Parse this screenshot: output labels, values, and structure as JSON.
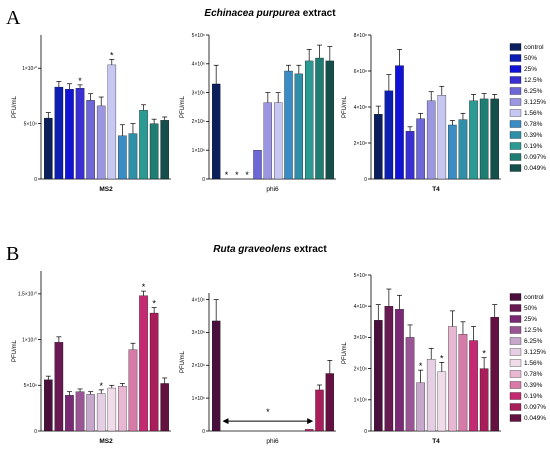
{
  "panels": [
    {
      "letter": "A",
      "title_italic": "Echinacea purpurea",
      "title_rest": " extract"
    },
    {
      "letter": "B",
      "title_italic": "Ruta graveolens",
      "title_rest": " extract"
    }
  ],
  "legend_labels": [
    "control",
    "50%",
    "25%",
    "12.5%",
    "6.25%",
    "3.125%",
    "1.56%",
    "0.78%",
    "0.39%",
    "0.19%",
    "0.097%",
    "0.049%"
  ],
  "palettes": {
    "A": [
      "#0a1f5c",
      "#0d1fb3",
      "#1212d6",
      "#3a2fd1",
      "#6e67d8",
      "#9b96e2",
      "#c6c8f2",
      "#3a8cc5",
      "#2e8fa8",
      "#2b9a93",
      "#1f7d74",
      "#154f4b"
    ],
    "B": [
      "#4a0f3c",
      "#6a1a52",
      "#7a2a75",
      "#9a5595",
      "#c8a7cd",
      "#e6cfe5",
      "#f0dbe8",
      "#e8b7d2",
      "#d87aa8",
      "#c42a72",
      "#a81e5a",
      "#641040"
    ]
  },
  "chart_data": [
    {
      "id": "A-MS2",
      "type": "bar",
      "panel": "A",
      "categories": [
        "control",
        "50%",
        "25%",
        "12.5%",
        "6.25%",
        "3.125%",
        "1.56%",
        "0.78%",
        "0.39%",
        "0.19%",
        "0.097%",
        "0.049%"
      ],
      "values": [
        5500000000.0,
        8300000000.0,
        8100000000.0,
        8200000000.0,
        7100000000.0,
        6600000000.0,
        10300000000.0,
        3900000000.0,
        4100000000.0,
        6200000000.0,
        5000000000.0,
        5300000000.0
      ],
      "errors": [
        500000000.0,
        500000000.0,
        500000000.0,
        300000000.0,
        600000000.0,
        800000000.0,
        500000000.0,
        1000000000.0,
        900000000.0,
        500000000.0,
        400000000.0,
        300000000.0
      ],
      "stars": [
        3,
        6
      ],
      "xlabel": "MS2",
      "ylabel": "PFU/mL",
      "ylim": [
        0,
        13000000000.0
      ],
      "ticks": [
        0,
        5000000000.0,
        10000000000.0
      ],
      "tick_labels": [
        "0",
        "5×10⁹",
        "1×10¹⁰"
      ]
    },
    {
      "id": "A-phi6",
      "type": "bar",
      "panel": "A",
      "categories": [
        "control",
        "50%",
        "25%",
        "12.5%",
        "6.25%",
        "3.125%",
        "1.56%",
        "0.78%",
        "0.39%",
        "0.19%",
        "0.097%",
        "0.049%"
      ],
      "values": [
        3300000.0,
        0,
        0,
        0,
        1000000.0,
        2650000.0,
        2650000.0,
        3750000.0,
        3650000.0,
        4100000.0,
        4200000.0,
        4100000.0
      ],
      "errors": [
        650000.0,
        0,
        0,
        0,
        0,
        350000.0,
        350000.0,
        200000.0,
        300000.0,
        400000.0,
        450000.0,
        500000.0
      ],
      "stars": [
        1,
        2,
        3
      ],
      "xlabel": "phi6",
      "ylabel": "PFU/mL",
      "ylim": [
        0,
        5000000.0
      ],
      "ticks": [
        0,
        1000000.0,
        2000000.0,
        3000000.0,
        4000000.0,
        5000000.0
      ],
      "tick_labels": [
        "0",
        "1×10⁶",
        "2×10⁶",
        "3×10⁶",
        "4×10⁶",
        "5×10⁶"
      ]
    },
    {
      "id": "A-T4",
      "type": "bar",
      "panel": "A",
      "categories": [
        "control",
        "50%",
        "25%",
        "12.5%",
        "6.25%",
        "3.125%",
        "1.56%",
        "0.78%",
        "0.39%",
        "0.19%",
        "0.097%",
        "0.049%"
      ],
      "values": [
        360000000.0,
        490000000.0,
        630000000.0,
        265000000.0,
        335000000.0,
        435000000.0,
        465000000.0,
        300000000.0,
        330000000.0,
        435000000.0,
        445000000.0,
        445000000.0
      ],
      "errors": [
        45000000.0,
        90000000.0,
        90000000.0,
        25000000.0,
        30000000.0,
        50000000.0,
        50000000.0,
        25000000.0,
        35000000.0,
        35000000.0,
        30000000.0,
        25000000.0
      ],
      "stars": [],
      "xlabel": "T4",
      "ylabel": "PFU/mL",
      "ylim": [
        0,
        800000000.0
      ],
      "ticks": [
        0,
        200000000.0,
        400000000.0,
        600000000.0,
        800000000.0
      ],
      "tick_labels": [
        "0",
        "2×10⁸",
        "4×10⁸",
        "6×10⁸",
        "8×10⁸"
      ]
    },
    {
      "id": "B-MS2",
      "type": "bar",
      "panel": "B",
      "categories": [
        "control",
        "50%",
        "25%",
        "12.5%",
        "6.25%",
        "3.125%",
        "1.56%",
        "0.78%",
        "0.39%",
        "0.19%",
        "0.097%",
        "0.049%"
      ],
      "values": [
        5600000000.0,
        9700000000.0,
        3900000000.0,
        4300000000.0,
        4000000000.0,
        4100000000.0,
        4700000000.0,
        4900000000.0,
        8900000000.0,
        14800000000.0,
        12900000000.0,
        5200000000.0
      ],
      "errors": [
        400000000.0,
        600000000.0,
        400000000.0,
        300000000.0,
        300000000.0,
        400000000.0,
        300000000.0,
        300000000.0,
        700000000.0,
        500000000.0,
        600000000.0,
        600000000.0
      ],
      "stars": [
        5,
        9,
        10
      ],
      "xlabel": "MS2",
      "ylabel": "PFU/mL",
      "ylim": [
        0,
        17500000000.0
      ],
      "ticks": [
        0,
        5000000000.0,
        10000000000.0,
        15000000000.0
      ],
      "tick_labels": [
        "0",
        "5×10⁹",
        "1×10¹⁰",
        "1.5×10¹⁰"
      ]
    },
    {
      "id": "B-phi6",
      "type": "bar",
      "panel": "B",
      "categories": [
        "control",
        "50%",
        "25%",
        "12.5%",
        "6.25%",
        "3.125%",
        "1.56%",
        "0.78%",
        "0.39%",
        "0.19%",
        "0.097%",
        "0.049%"
      ],
      "values": [
        3350000.0,
        0,
        0,
        0,
        0,
        0,
        0,
        0,
        0,
        50000.0,
        1250000.0,
        1750000.0
      ],
      "errors": [
        650000.0,
        0,
        0,
        0,
        0,
        0,
        0,
        0,
        0,
        0,
        150000.0,
        400000.0
      ],
      "stars": [],
      "bracket": {
        "from": 1,
        "to": 9,
        "value": 300000.0,
        "label": "*"
      },
      "xlabel": "phi6",
      "ylabel": "PFU/mL",
      "ylim": [
        0,
        4200000.0
      ],
      "ticks": [
        0,
        1000000.0,
        2000000.0,
        3000000.0,
        4000000.0
      ],
      "tick_labels": [
        "0",
        "1×10⁶",
        "2×10⁶",
        "3×10⁶",
        "4×10⁶"
      ]
    },
    {
      "id": "B-T4",
      "type": "bar",
      "panel": "B",
      "categories": [
        "control",
        "50%",
        "25%",
        "12.5%",
        "6.25%",
        "3.125%",
        "1.56%",
        "0.78%",
        "0.39%",
        "0.19%",
        "0.097%",
        "0.049%"
      ],
      "values": [
        355000000.0,
        400000000.0,
        390000000.0,
        300000000.0,
        155000000.0,
        230000000.0,
        190000000.0,
        335000000.0,
        310000000.0,
        290000000.0,
        200000000.0,
        365000000.0
      ],
      "errors": [
        50000000.0,
        55000000.0,
        45000000.0,
        40000000.0,
        40000000.0,
        35000000.0,
        30000000.0,
        50000000.0,
        40000000.0,
        45000000.0,
        35000000.0,
        40000000.0
      ],
      "stars": [
        4,
        6,
        10
      ],
      "xlabel": "T4",
      "ylabel": "PFU/mL",
      "ylim": [
        0,
        500000000.0
      ],
      "ticks": [
        0,
        100000000.0,
        200000000.0,
        300000000.0,
        400000000.0,
        500000000.0
      ],
      "tick_labels": [
        "0",
        "1×10⁸",
        "2×10⁸",
        "3×10⁸",
        "4×10⁸",
        "5×10⁸"
      ]
    }
  ]
}
